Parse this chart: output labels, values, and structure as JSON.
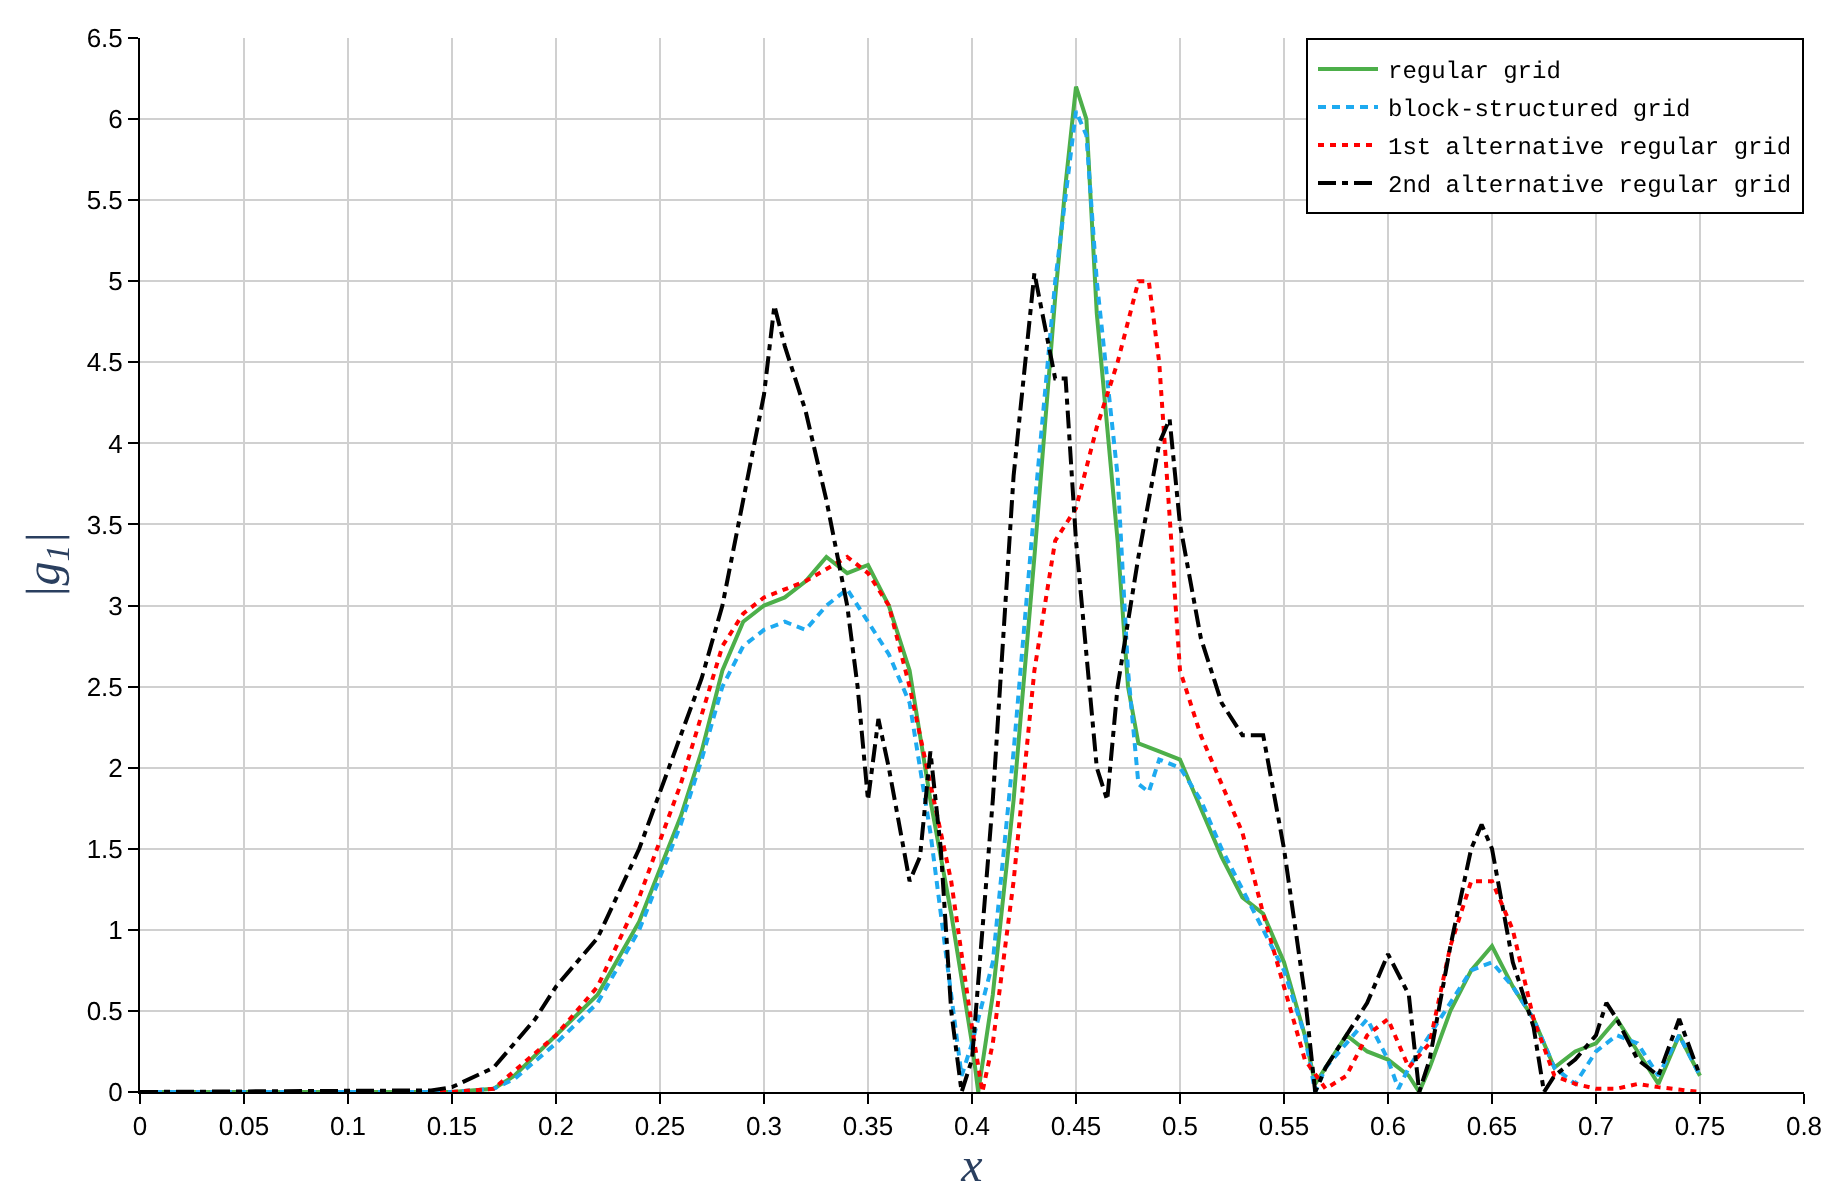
{
  "chart_data": {
    "type": "line",
    "xlabel": "x",
    "ylabel": "|g$_{1}$|",
    "xlim": [
      0,
      0.8
    ],
    "ylim": [
      0,
      6.5
    ],
    "xticks": [
      0,
      0.05,
      0.1,
      0.15,
      0.2,
      0.25,
      0.3,
      0.35,
      0.4,
      0.45,
      0.5,
      0.55,
      0.6,
      0.65,
      0.7,
      0.75,
      0.8
    ],
    "yticks": [
      0,
      0.5,
      1,
      1.5,
      2,
      2.5,
      3,
      3.5,
      4,
      4.5,
      5,
      5.5,
      6,
      6.5
    ],
    "grid": true,
    "legend": "top right",
    "series": [
      {
        "name": "regular grid",
        "color": "#4daf4a",
        "line_style": "solid",
        "x": [
          0,
          0.15,
          0.17,
          0.18,
          0.2,
          0.22,
          0.24,
          0.26,
          0.27,
          0.28,
          0.29,
          0.3,
          0.31,
          0.32,
          0.33,
          0.34,
          0.35,
          0.36,
          0.37,
          0.38,
          0.39,
          0.4,
          0.403,
          0.41,
          0.42,
          0.43,
          0.44,
          0.445,
          0.45,
          0.455,
          0.46,
          0.47,
          0.475,
          0.48,
          0.49,
          0.5,
          0.51,
          0.52,
          0.53,
          0.54,
          0.55,
          0.56,
          0.565,
          0.57,
          0.58,
          0.59,
          0.6,
          0.61,
          0.615,
          0.62,
          0.63,
          0.64,
          0.65,
          0.66,
          0.67,
          0.68,
          0.69,
          0.7,
          0.71,
          0.72,
          0.73,
          0.74,
          0.75
        ],
        "values": [
          0,
          0,
          0.02,
          0.1,
          0.35,
          0.6,
          1.05,
          1.7,
          2.1,
          2.6,
          2.9,
          3.0,
          3.05,
          3.15,
          3.3,
          3.2,
          3.25,
          3.0,
          2.6,
          1.8,
          1.1,
          0.3,
          0,
          0.6,
          1.8,
          3.3,
          4.9,
          5.6,
          6.2,
          6.0,
          4.8,
          3.4,
          2.5,
          2.15,
          2.1,
          2.05,
          1.75,
          1.45,
          1.2,
          1.1,
          0.8,
          0.35,
          0.05,
          0.15,
          0.35,
          0.25,
          0.2,
          0.1,
          0,
          0.15,
          0.5,
          0.75,
          0.9,
          0.65,
          0.45,
          0.15,
          0.25,
          0.3,
          0.45,
          0.25,
          0.05,
          0.35,
          0.1
        ]
      },
      {
        "name": "block-structured grid",
        "color": "#1eaaf0",
        "line_style": "dashed",
        "x": [
          0,
          0.15,
          0.17,
          0.18,
          0.2,
          0.22,
          0.24,
          0.26,
          0.27,
          0.28,
          0.29,
          0.3,
          0.31,
          0.32,
          0.33,
          0.34,
          0.35,
          0.36,
          0.37,
          0.38,
          0.39,
          0.395,
          0.4,
          0.41,
          0.42,
          0.43,
          0.44,
          0.45,
          0.455,
          0.46,
          0.47,
          0.475,
          0.48,
          0.485,
          0.49,
          0.5,
          0.51,
          0.52,
          0.53,
          0.54,
          0.55,
          0.56,
          0.565,
          0.57,
          0.58,
          0.59,
          0.6,
          0.605,
          0.61,
          0.62,
          0.63,
          0.64,
          0.65,
          0.66,
          0.67,
          0.68,
          0.69,
          0.7,
          0.71,
          0.72,
          0.73,
          0.74,
          0.75
        ],
        "values": [
          0,
          0,
          0.02,
          0.08,
          0.3,
          0.55,
          1.0,
          1.65,
          2.05,
          2.5,
          2.75,
          2.85,
          2.9,
          2.85,
          3.0,
          3.1,
          2.9,
          2.7,
          2.4,
          1.6,
          0.6,
          0.1,
          0.3,
          0.8,
          2.1,
          3.6,
          5.0,
          6.05,
          5.9,
          5.0,
          3.8,
          2.6,
          1.9,
          1.85,
          2.05,
          2.0,
          1.8,
          1.5,
          1.25,
          1.0,
          0.75,
          0.35,
          0,
          0.15,
          0.3,
          0.45,
          0.2,
          0.02,
          0.15,
          0.35,
          0.55,
          0.75,
          0.8,
          0.65,
          0.45,
          0.15,
          0.05,
          0.25,
          0.35,
          0.3,
          0.1,
          0.35,
          0.1
        ]
      },
      {
        "name": "1st alternative regular grid",
        "color": "#ff0000",
        "line_style": "dotted",
        "x": [
          0,
          0.15,
          0.17,
          0.2,
          0.22,
          0.24,
          0.26,
          0.28,
          0.29,
          0.3,
          0.32,
          0.34,
          0.35,
          0.36,
          0.37,
          0.38,
          0.39,
          0.4,
          0.405,
          0.41,
          0.42,
          0.43,
          0.44,
          0.45,
          0.46,
          0.47,
          0.48,
          0.485,
          0.49,
          0.5,
          0.51,
          0.52,
          0.53,
          0.54,
          0.55,
          0.56,
          0.57,
          0.58,
          0.59,
          0.6,
          0.61,
          0.62,
          0.63,
          0.64,
          0.65,
          0.66,
          0.67,
          0.68,
          0.69,
          0.7,
          0.71,
          0.72,
          0.73,
          0.75
        ],
        "values": [
          0,
          0,
          0.02,
          0.35,
          0.65,
          1.2,
          1.9,
          2.75,
          2.95,
          3.05,
          3.15,
          3.3,
          3.2,
          3.0,
          2.5,
          1.9,
          1.3,
          0.4,
          0,
          0.3,
          1.3,
          2.6,
          3.4,
          3.6,
          4.1,
          4.5,
          5.0,
          5.0,
          4.5,
          2.6,
          2.2,
          1.9,
          1.6,
          1.1,
          0.65,
          0.2,
          0.02,
          0.1,
          0.35,
          0.45,
          0.15,
          0.3,
          0.9,
          1.3,
          1.3,
          1.0,
          0.45,
          0.1,
          0.05,
          0.02,
          0.02,
          0.05,
          0.03,
          0
        ]
      },
      {
        "name": "2nd alternative regular grid",
        "color": "#000000",
        "line_style": "dashdot",
        "x": [
          0,
          0.14,
          0.15,
          0.17,
          0.19,
          0.2,
          0.22,
          0.24,
          0.26,
          0.27,
          0.28,
          0.29,
          0.3,
          0.305,
          0.31,
          0.32,
          0.33,
          0.34,
          0.345,
          0.35,
          0.355,
          0.36,
          0.37,
          0.375,
          0.38,
          0.385,
          0.39,
          0.395,
          0.4,
          0.41,
          0.42,
          0.43,
          0.44,
          0.445,
          0.45,
          0.46,
          0.465,
          0.47,
          0.48,
          0.49,
          0.495,
          0.5,
          0.51,
          0.52,
          0.53,
          0.54,
          0.55,
          0.56,
          0.565,
          0.57,
          0.58,
          0.59,
          0.6,
          0.61,
          0.615,
          0.62,
          0.63,
          0.64,
          0.645,
          0.65,
          0.66,
          0.67,
          0.675,
          0.68,
          0.69,
          0.7,
          0.705,
          0.71,
          0.72,
          0.73,
          0.74,
          0.75
        ],
        "values": [
          0,
          0.01,
          0.03,
          0.15,
          0.45,
          0.65,
          0.95,
          1.5,
          2.2,
          2.55,
          3.0,
          3.65,
          4.3,
          4.85,
          4.6,
          4.2,
          3.65,
          3.0,
          2.5,
          1.8,
          2.3,
          2.0,
          1.3,
          1.45,
          2.1,
          1.5,
          0.5,
          0,
          0.2,
          1.8,
          3.8,
          5.05,
          4.4,
          4.4,
          3.4,
          2.0,
          1.8,
          2.5,
          3.3,
          4.0,
          4.15,
          3.5,
          2.8,
          2.4,
          2.2,
          2.2,
          1.5,
          0.6,
          0,
          0.15,
          0.35,
          0.55,
          0.85,
          0.6,
          0,
          0.2,
          0.9,
          1.5,
          1.65,
          1.5,
          0.8,
          0.4,
          0,
          0.1,
          0.2,
          0.35,
          0.55,
          0.45,
          0.2,
          0.1,
          0.45,
          0.1
        ]
      }
    ]
  }
}
